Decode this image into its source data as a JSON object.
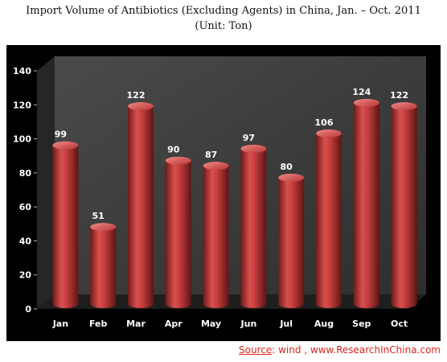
{
  "header": {
    "title": "Import Volume of Antibiotics (Excluding Agents) in China, Jan. – Oct. 2011",
    "subtitle": "(Unit: Ton)"
  },
  "footer": {
    "source_label": "Source",
    "source_text": ": wind , www.ResearchInChina.com"
  },
  "colors": {
    "bar": "#c9403f",
    "bar_dark": "#7a1d1d",
    "bar_top": "#e07070",
    "wall": "#3c3c3c",
    "floor": "#1e1e1e",
    "axis_text": "#ffffff",
    "source_text": "#e2231a"
  },
  "chart_data": {
    "type": "bar",
    "style": "3d-cylinder",
    "title": "Import Volume of Antibiotics (Excluding Agents) in China, Jan. – Oct. 2011",
    "subtitle": "(Unit: Ton)",
    "categories": [
      "Jan",
      "Feb",
      "Mar",
      "Apr",
      "May",
      "Jun",
      "Jul",
      "Aug",
      "Sep",
      "Oct"
    ],
    "values": [
      99,
      51,
      122,
      90,
      87,
      97,
      80,
      106,
      124,
      122
    ],
    "ylim": [
      0,
      140
    ],
    "yticks": [
      0,
      20,
      40,
      60,
      80,
      100,
      120,
      140
    ],
    "grid": false,
    "legend": "none",
    "data_labels": true
  }
}
